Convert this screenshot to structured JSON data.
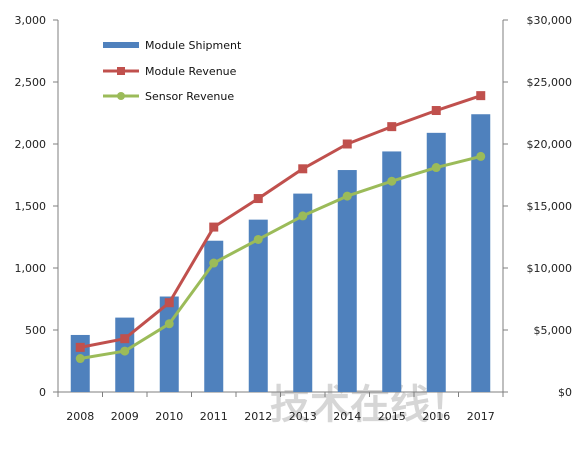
{
  "chart_data": {
    "type": "bar",
    "categories": [
      "2008",
      "2009",
      "2010",
      "2011",
      "2012",
      "2013",
      "2014",
      "2015",
      "2016",
      "2017"
    ],
    "series": [
      {
        "name": "Module Shipment",
        "kind": "bar",
        "axis": "left",
        "values": [
          460,
          600,
          770,
          1220,
          1390,
          1600,
          1790,
          1940,
          2090,
          2240
        ]
      },
      {
        "name": "Module Revenue",
        "kind": "line",
        "marker": "square",
        "axis": "right",
        "values": [
          3600,
          4300,
          7200,
          13300,
          15600,
          18000,
          20000,
          21400,
          22700,
          23900
        ]
      },
      {
        "name": "Sensor Revenue",
        "kind": "line",
        "marker": "circle",
        "axis": "right",
        "values": [
          2700,
          3300,
          5500,
          10400,
          12300,
          14200,
          15800,
          17000,
          18100,
          19000
        ]
      }
    ],
    "y_left": {
      "ylim": [
        0,
        3000
      ],
      "ticks": [
        0,
        500,
        1000,
        1500,
        2000,
        2500,
        3000
      ],
      "tick_labels": [
        "0",
        "500",
        "1,000",
        "1,500",
        "2,000",
        "2,500",
        "3,000"
      ]
    },
    "y_right": {
      "ylim": [
        0,
        30000
      ],
      "ticks": [
        0,
        5000,
        10000,
        15000,
        20000,
        25000,
        30000
      ],
      "tick_labels": [
        "$0",
        "$5,000",
        "$10,000",
        "$15,000",
        "$20,000",
        "$25,000",
        "$30,000"
      ]
    },
    "grid": false,
    "legend_position": "top-left",
    "colors": {
      "bar": "#4f81bd",
      "module_revenue": "#c0504d",
      "sensor_revenue": "#9bbb59",
      "axis": "#7f7f7f"
    }
  },
  "watermark": "技术在线！"
}
